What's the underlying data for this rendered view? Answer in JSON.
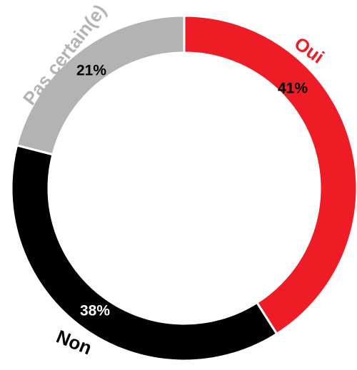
{
  "chart_data": {
    "type": "pie",
    "donut": true,
    "categories": [
      "Oui",
      "Non",
      "Pas certain(e)"
    ],
    "values": [
      41,
      38,
      21
    ],
    "value_labels": [
      "41%",
      "38%",
      "21%"
    ],
    "colors": [
      "#ee1c25",
      "#000000",
      "#b3b3b3"
    ]
  }
}
